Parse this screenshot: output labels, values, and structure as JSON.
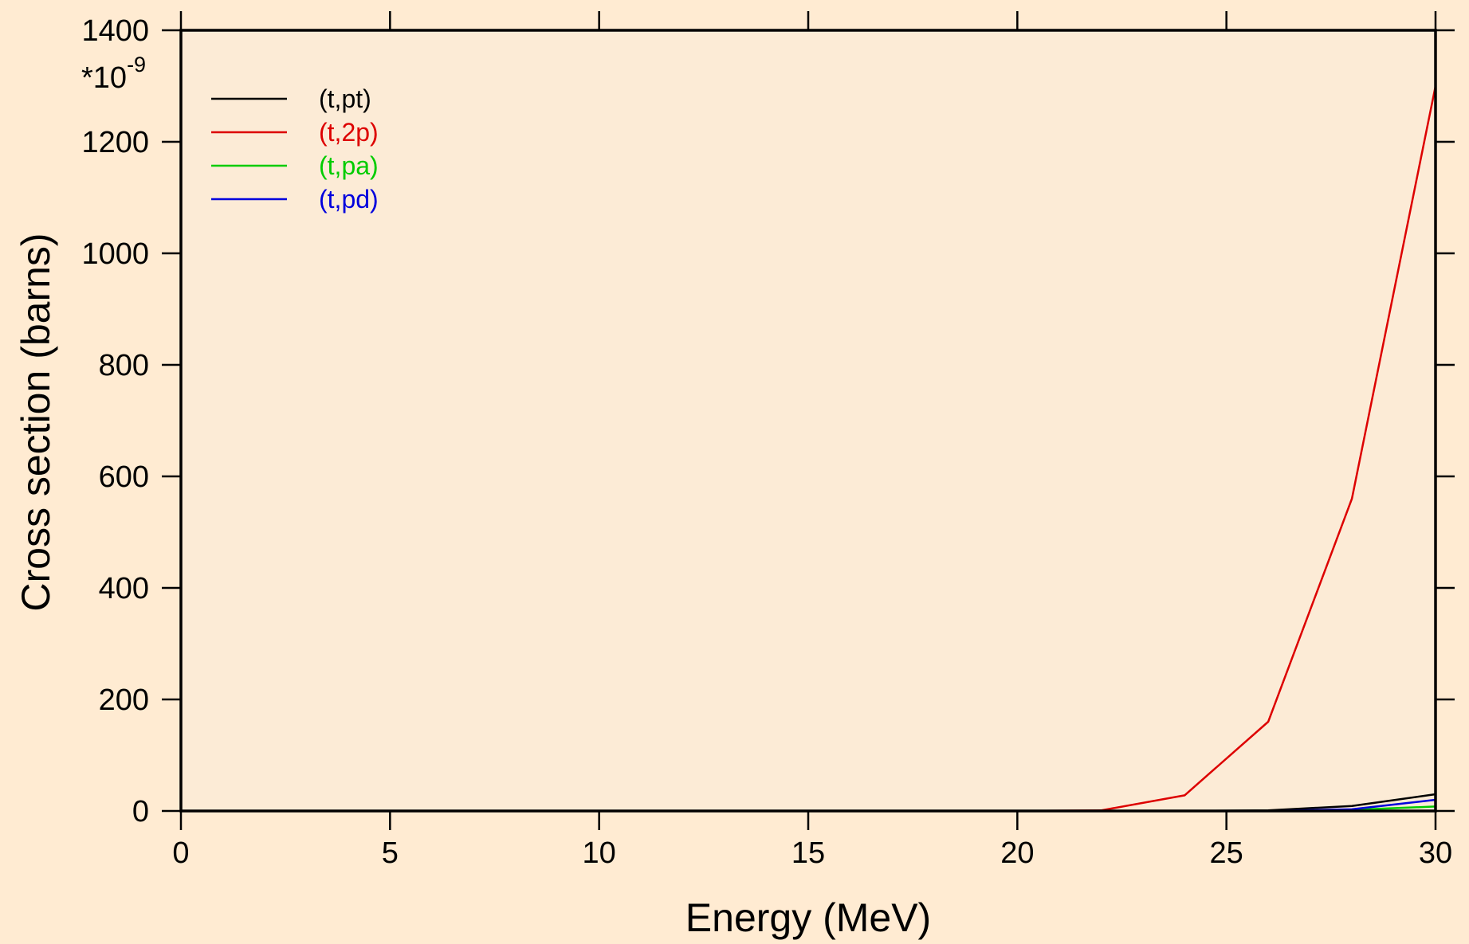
{
  "chart_data": {
    "type": "line",
    "xlabel": "Energy (MeV)",
    "ylabel": "Cross section (barns)",
    "y_multiplier_label": {
      "base": "*10",
      "exponent": "-9"
    },
    "xlim": [
      0,
      30
    ],
    "ylim": [
      0,
      1400
    ],
    "x_ticks": [
      "0",
      "5",
      "10",
      "15",
      "20",
      "25",
      "30"
    ],
    "y_ticks": [
      "0",
      "200",
      "400",
      "600",
      "800",
      "1000",
      "1200",
      "1400"
    ],
    "grid": false,
    "legend_position": "top-left",
    "colors": {
      "plot_bg": "#fcebd6",
      "page_bg": "#ffebd2"
    },
    "series": [
      {
        "name": "(t,pt)",
        "color": "#000000",
        "x": [
          0,
          20,
          22,
          24,
          26,
          28,
          30,
          30
        ],
        "y": [
          0,
          0,
          0,
          0,
          1,
          9,
          30,
          0
        ]
      },
      {
        "name": "(t,2p)",
        "color": "#dd0000",
        "x": [
          0,
          20,
          22,
          24,
          26,
          28,
          30,
          30
        ],
        "y": [
          0,
          0,
          1,
          28,
          160,
          560,
          1300,
          0
        ]
      },
      {
        "name": "(t,pa)",
        "color": "#00cc00",
        "x": [
          0,
          20,
          22,
          24,
          26,
          28,
          30,
          30
        ],
        "y": [
          0,
          0,
          0,
          0,
          0,
          2,
          8,
          0
        ]
      },
      {
        "name": "(t,pd)",
        "color": "#0000dd",
        "x": [
          0,
          20,
          22,
          24,
          26,
          28,
          30,
          30
        ],
        "y": [
          0,
          0,
          0,
          0,
          0,
          3,
          20,
          0
        ]
      }
    ]
  }
}
